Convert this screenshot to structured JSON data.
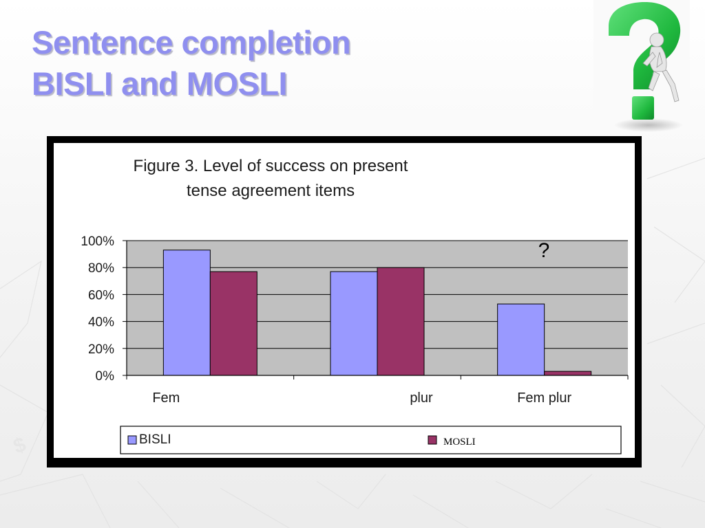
{
  "slide": {
    "title_line1": "Sentence completion",
    "title_line2": "BISLI and MOSLI"
  },
  "chart_data": {
    "type": "bar",
    "title_line1": "Figure 3. Level of success on present",
    "title_line2": "tense agreement items",
    "categories": [
      "Fem",
      "plur",
      "Fem plur"
    ],
    "series": [
      {
        "name": "BISLI",
        "values": [
          93,
          77,
          53
        ],
        "color": "#9999ff"
      },
      {
        "name": "MOSLI",
        "values": [
          77,
          80,
          3
        ],
        "color": "#993366"
      }
    ],
    "ylim": [
      0,
      100
    ],
    "yticks": [
      "0%",
      "20%",
      "40%",
      "60%",
      "80%",
      "100%"
    ],
    "grid": true,
    "plot_background": "#c0c0c0",
    "legend_placement": "bottom",
    "annotation": "?"
  }
}
